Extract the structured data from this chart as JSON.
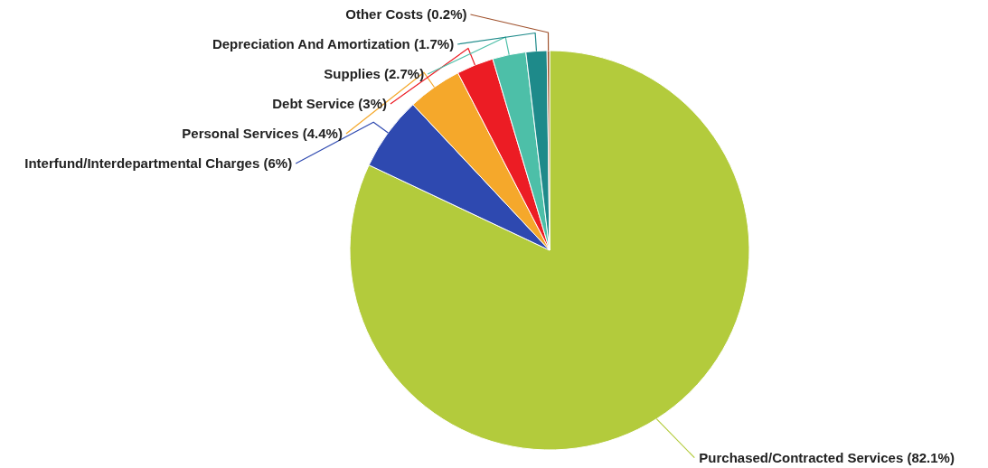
{
  "chart_data": {
    "type": "pie",
    "categories": [
      "Purchased/Contracted Services",
      "Interfund/Interdepartmental Charges",
      "Personal Services",
      "Debt Service",
      "Supplies",
      "Depreciation And Amortization",
      "Other Costs"
    ],
    "values": [
      82.1,
      6,
      4.4,
      3,
      2.7,
      1.7,
      0.2
    ],
    "value_labels": [
      "(82.1%)",
      "(6%)",
      "(4.4%)",
      "(3%)",
      "(2.7%)",
      "(1.7%)",
      "(0.2%)"
    ],
    "colors": [
      "#b3cb3c",
      "#2e49b0",
      "#f5a82b",
      "#ec1c24",
      "#4dbfa8",
      "#1e8a8a",
      "#a0522d"
    ]
  }
}
